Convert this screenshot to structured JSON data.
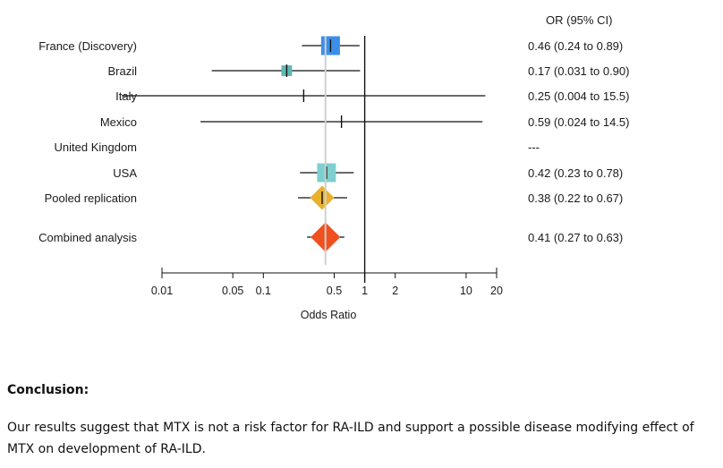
{
  "chart_data": {
    "type": "forest",
    "ci_header": "OR (95% CI)",
    "xlabel": "Odds Ratio",
    "x_scale": "log",
    "xlim": [
      0.01,
      20
    ],
    "reference_line": 1,
    "pooled_reference": 0.41,
    "ticks": [
      {
        "value": 0.01,
        "label": "0.01"
      },
      {
        "value": 0.05,
        "label": "0.05"
      },
      {
        "value": 0.1,
        "label": "0.1"
      },
      {
        "value": 0.5,
        "label": "0.5"
      },
      {
        "value": 1,
        "label": "1"
      },
      {
        "value": 2,
        "label": "2"
      },
      {
        "value": 10,
        "label": "10"
      },
      {
        "value": 20,
        "label": "20"
      }
    ],
    "rows": [
      {
        "label": "France (Discovery)",
        "or": 0.46,
        "lower": 0.24,
        "upper": 0.89,
        "ci_text": "0.46 (0.24 to 0.89)",
        "marker": "square",
        "weight": 1.0,
        "color": "#3b8fe8"
      },
      {
        "label": "Brazil",
        "or": 0.17,
        "lower": 0.031,
        "upper": 0.9,
        "ci_text": "0.17 (0.031 to 0.90)",
        "marker": "square",
        "weight": 0.35,
        "color": "#5fb8b0"
      },
      {
        "label": "Italy",
        "or": 0.25,
        "lower": 0.004,
        "upper": 15.5,
        "ci_text": "0.25 (0.004 to 15.5)",
        "marker": "square",
        "weight": 0.0,
        "color": "#5fb8b0"
      },
      {
        "label": "Mexico",
        "or": 0.59,
        "lower": 0.024,
        "upper": 14.5,
        "ci_text": "0.59 (0.024 to 14.5)",
        "marker": "square",
        "weight": 0.0,
        "color": "#5fb8b0"
      },
      {
        "label": "United Kingdom",
        "or": null,
        "lower": null,
        "upper": null,
        "ci_text": "---",
        "marker": "none",
        "weight": 0.0,
        "color": "#5fb8b0"
      },
      {
        "label": "USA",
        "or": 0.42,
        "lower": 0.23,
        "upper": 0.78,
        "ci_text": "0.42 (0.23 to 0.78)",
        "marker": "square",
        "weight": 1.0,
        "color": "#7dd0cf"
      },
      {
        "label": "Pooled replication",
        "or": 0.38,
        "lower": 0.22,
        "upper": 0.67,
        "ci_text": "0.38 (0.22 to 0.67)",
        "marker": "diamond",
        "weight": 0.55,
        "color": "#e8b12c"
      },
      {
        "label": "Combined analysis",
        "or": 0.41,
        "lower": 0.27,
        "upper": 0.63,
        "ci_text": "0.41 (0.27 to 0.63)",
        "marker": "diamond",
        "weight": 0.85,
        "color": "#f0501e"
      }
    ]
  },
  "conclusion": {
    "heading": "Conclusion:",
    "body": "Our results suggest that MTX is not a risk factor for RA-ILD and support a possible disease modifying effect of MTX on development of RA-ILD."
  }
}
